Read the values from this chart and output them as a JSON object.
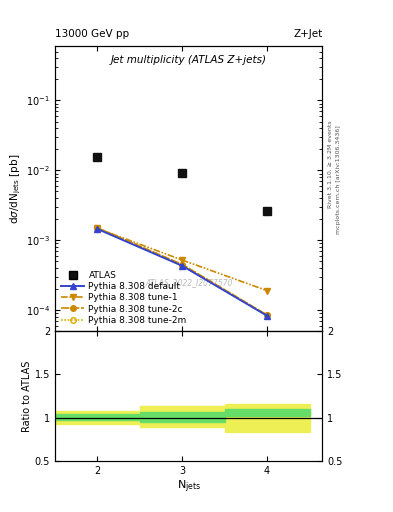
{
  "title_main": "Jet multiplicity (ATLAS Z+jets)",
  "header_left": "13000 GeV pp",
  "header_right": "Z+Jet",
  "right_label_top": "Rivet 3.1.10, ≥ 3.2M events",
  "right_label_bottom": "mcplots.cern.ch [arXiv:1306.3436]",
  "watermark": "ATLAS_2022_I2077570",
  "ylabel_main": "dσ/dN$_{\\mathrm{jets}}$ [pb]",
  "ylabel_ratio": "Ratio to ATLAS",
  "xlabel": "N$_{\\mathrm{jets}}$",
  "njets": [
    2,
    3,
    4
  ],
  "atlas_data": [
    0.0155,
    0.0092,
    0.0026
  ],
  "pythia_default": [
    0.00145,
    0.00043,
    8.3e-05
  ],
  "pythia_tune1": [
    0.00148,
    0.00052,
    0.00019
  ],
  "pythia_tune2c": [
    0.0015,
    0.00045,
    8.5e-05
  ],
  "pythia_tune2m": [
    0.0015,
    0.00045,
    8.5e-05
  ],
  "color_atlas": "#111111",
  "color_default": "#3344cc",
  "color_tune1": "#cc8800",
  "color_tune2c": "#cc8800",
  "color_tune2m": "#cc8800",
  "ratio_green_low1": 0.97,
  "ratio_green_high1": 1.04,
  "ratio_green_low2": 0.95,
  "ratio_green_high2": 1.07,
  "ratio_green_low3": 1.02,
  "ratio_green_high3": 1.1,
  "ratio_yellow_low1": 0.93,
  "ratio_yellow_high1": 1.08,
  "ratio_yellow_low2": 0.89,
  "ratio_yellow_high2": 1.13,
  "ratio_yellow_low3": 0.83,
  "ratio_yellow_high3": 1.16,
  "ratio_bin_edges": [
    1.5,
    2.5,
    3.5,
    4.5
  ],
  "ylim_main_low": 5e-05,
  "ylim_main_high": 0.6,
  "ylim_ratio_low": 0.5,
  "ylim_ratio_high": 2.0
}
